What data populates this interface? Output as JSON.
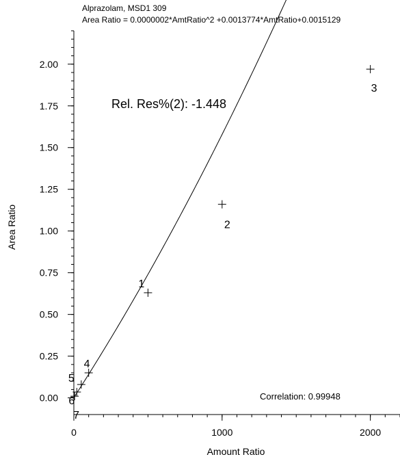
{
  "chart_data": {
    "type": "scatter",
    "title_line1": "Alprazolam, MSD1 309",
    "title_line2": "Area Ratio = 0.0000002*AmtRatio^2 +0.0013774*AmtRatio+0.0015129",
    "xlabel": "Amount Ratio",
    "ylabel": "Area Ratio",
    "xlim": [
      0,
      2200
    ],
    "ylim": [
      -0.1,
      2.2
    ],
    "x_ticks": [
      0,
      1000,
      2000
    ],
    "x_tick_labels": [
      "0",
      "1000",
      "2000"
    ],
    "y_ticks": [
      0,
      0.25,
      0.5,
      0.75,
      1.0,
      1.25,
      1.5,
      1.75,
      2.0
    ],
    "y_tick_labels": [
      "0.00",
      "0.25",
      "0.50",
      "0.75",
      "1.00",
      "1.25",
      "1.50",
      "1.75",
      "2.00"
    ],
    "curve": {
      "a": 2e-07,
      "b": 0.0013774,
      "c": 0.0015129
    },
    "points": [
      {
        "label": "1",
        "x": 500,
        "y": 0.63
      },
      {
        "label": "2",
        "x": 1000,
        "y": 1.16
      },
      {
        "label": "3",
        "x": 2000,
        "y": 1.97
      },
      {
        "label": "4",
        "x": 100,
        "y": 0.15
      },
      {
        "label": "5",
        "x": 50,
        "y": 0.08
      },
      {
        "label": "6",
        "x": 20,
        "y": 0.035
      },
      {
        "label": "7",
        "x": 5,
        "y": 0.01
      }
    ],
    "annotation_rel_res": "Rel. Res%(2): -1.448",
    "annotation_correlation": "Correlation: 0.99948"
  }
}
